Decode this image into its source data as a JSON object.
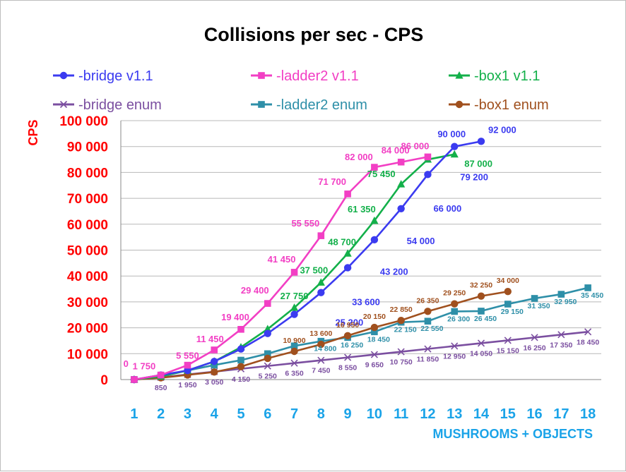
{
  "chart_data": {
    "type": "line",
    "title": "Collisions per sec - CPS",
    "ylabel": "CPS",
    "xlabel": "MUSHROOMS + OBJECTS",
    "ylim": [
      0,
      100000
    ],
    "yticks": [
      "0",
      "10 000",
      "20 000",
      "30 000",
      "40 000",
      "50 000",
      "60 000",
      "70 000",
      "80 000",
      "90 000",
      "100 000"
    ],
    "x": [
      1,
      2,
      3,
      4,
      5,
      6,
      7,
      8,
      9,
      10,
      11,
      12,
      13,
      14,
      15,
      16,
      17,
      18
    ],
    "xticks": [
      "1",
      "2",
      "3",
      "4",
      "5",
      "6",
      "7",
      "8",
      "9",
      "10",
      "11",
      "12",
      "13",
      "14",
      "15",
      "16",
      "17",
      "18"
    ],
    "grid": "horizontal",
    "legend_position": "top",
    "series": [
      {
        "name": "-bridge v1.1",
        "color": "#3b3bf0",
        "marker": "circle",
        "x": [
          1,
          2,
          3,
          4,
          5,
          6,
          7,
          8,
          9,
          10,
          11,
          12,
          13,
          14
        ],
        "values": [
          0,
          1750,
          3500,
          7000,
          11800,
          17800,
          25200,
          33600,
          43200,
          54000,
          66000,
          79200,
          90000,
          92000
        ],
        "labels": [
          {
            "x": 8,
            "text": "25 200"
          },
          {
            "x": 9,
            "text": "33 600"
          },
          {
            "x": 10,
            "text": "43 200"
          },
          {
            "x": 11,
            "text": "54 000"
          },
          {
            "x": 12,
            "text": "66 000"
          },
          {
            "x": 13,
            "text": "79 200"
          },
          {
            "x": 13,
            "text": "90 000"
          },
          {
            "x": 14,
            "text": "92 000"
          }
        ]
      },
      {
        "name": "-ladder2 v1.1",
        "color": "#f23fc4",
        "marker": "square",
        "x": [
          1,
          2,
          3,
          4,
          5,
          6,
          7,
          8,
          9,
          10,
          11,
          12
        ],
        "values": [
          0,
          1750,
          5550,
          11450,
          19400,
          29400,
          41450,
          55550,
          71700,
          82000,
          84000,
          86000
        ],
        "labels": [
          {
            "x": 1,
            "text": "0"
          },
          {
            "x": 2,
            "text": "1 750"
          },
          {
            "x": 3,
            "text": "5 550"
          },
          {
            "x": 4,
            "text": "11 450"
          },
          {
            "x": 5,
            "text": "19 400"
          },
          {
            "x": 6,
            "text": "29 400"
          },
          {
            "x": 7,
            "text": "41 450"
          },
          {
            "x": 8,
            "text": "55 550"
          },
          {
            "x": 9,
            "text": "71 700"
          },
          {
            "x": 10,
            "text": "82 000"
          },
          {
            "x": 11,
            "text": "84 000"
          },
          {
            "x": 12,
            "text": "86 000"
          }
        ]
      },
      {
        "name": "-box1 v1.1",
        "color": "#13b04a",
        "marker": "triangle",
        "x": [
          1,
          2,
          3,
          4,
          5,
          6,
          7,
          8,
          9,
          10,
          11,
          12,
          13
        ],
        "values": [
          0,
          1200,
          3500,
          7000,
          12500,
          19500,
          27750,
          37500,
          48700,
          61350,
          75450,
          85000,
          87000
        ],
        "labels": [
          {
            "x": 7,
            "text": "27 750"
          },
          {
            "x": 8,
            "text": "37 500"
          },
          {
            "x": 9,
            "text": "48 700"
          },
          {
            "x": 10,
            "text": "61 350"
          },
          {
            "x": 11,
            "text": "75 450"
          },
          {
            "x": 13,
            "text": "87 000"
          }
        ]
      },
      {
        "name": "-bridge enum",
        "color": "#7b4fa0",
        "marker": "x",
        "x": [
          1,
          2,
          3,
          4,
          5,
          6,
          7,
          8,
          9,
          10,
          11,
          12,
          13,
          14,
          15,
          16,
          17,
          18
        ],
        "values": [
          0,
          850,
          1950,
          3050,
          4150,
          5250,
          6350,
          7450,
          8550,
          9650,
          10750,
          11850,
          12950,
          14050,
          15150,
          16250,
          17350,
          18450
        ],
        "labels": [
          {
            "x": 2,
            "text": "850"
          },
          {
            "x": 3,
            "text": "1 950"
          },
          {
            "x": 4,
            "text": "3 050"
          },
          {
            "x": 5,
            "text": "4 150"
          },
          {
            "x": 6,
            "text": "5 250"
          },
          {
            "x": 7,
            "text": "6 350"
          },
          {
            "x": 8,
            "text": "7 450"
          },
          {
            "x": 9,
            "text": "8 550"
          },
          {
            "x": 10,
            "text": "9 650"
          },
          {
            "x": 11,
            "text": "10 750"
          },
          {
            "x": 12,
            "text": "11 850"
          },
          {
            "x": 13,
            "text": "12 950"
          },
          {
            "x": 14,
            "text": "14 050"
          },
          {
            "x": 15,
            "text": "15 150"
          },
          {
            "x": 16,
            "text": "16 250"
          },
          {
            "x": 17,
            "text": "17 350"
          },
          {
            "x": 18,
            "text": "18 450"
          }
        ]
      },
      {
        "name": "-ladder2 enum",
        "color": "#2e8fa8",
        "marker": "square",
        "x": [
          1,
          2,
          3,
          4,
          5,
          6,
          7,
          8,
          9,
          10,
          11,
          12,
          13,
          14,
          15,
          16,
          17,
          18
        ],
        "values": [
          0,
          1500,
          3500,
          5600,
          7500,
          10000,
          13000,
          14800,
          16250,
          18450,
          22150,
          22550,
          26300,
          26450,
          29150,
          31350,
          32950,
          35450
        ],
        "labels": [
          {
            "x": 8,
            "text": "14 800"
          },
          {
            "x": 9,
            "text": "16 250"
          },
          {
            "x": 10,
            "text": "18 450"
          },
          {
            "x": 11,
            "text": "22 150"
          },
          {
            "x": 12,
            "text": "22 550"
          },
          {
            "x": 13,
            "text": "26 300"
          },
          {
            "x": 14,
            "text": "26 450"
          },
          {
            "x": 15,
            "text": "29 150"
          },
          {
            "x": 16,
            "text": "31 350"
          },
          {
            "x": 17,
            "text": "32 950"
          },
          {
            "x": 18,
            "text": "35 450"
          }
        ]
      },
      {
        "name": "-box1 enum",
        "color": "#a0501e",
        "marker": "circle",
        "x": [
          1,
          2,
          3,
          4,
          5,
          6,
          7,
          8,
          9,
          10,
          11,
          12,
          13,
          14,
          15
        ],
        "values": [
          0,
          700,
          1800,
          2900,
          5000,
          8200,
          10900,
          13600,
          16950,
          20150,
          22850,
          26350,
          29250,
          32250,
          34000
        ],
        "labels": [
          {
            "x": 7,
            "text": "10 900"
          },
          {
            "x": 8,
            "text": "13 600"
          },
          {
            "x": 9,
            "text": "16 950"
          },
          {
            "x": 10,
            "text": "20 150"
          },
          {
            "x": 11,
            "text": "22 850"
          },
          {
            "x": 12,
            "text": "26 350"
          },
          {
            "x": 13,
            "text": "29 250"
          },
          {
            "x": 14,
            "text": "32 250"
          },
          {
            "x": 15,
            "text": "34 000"
          }
        ]
      }
    ]
  }
}
